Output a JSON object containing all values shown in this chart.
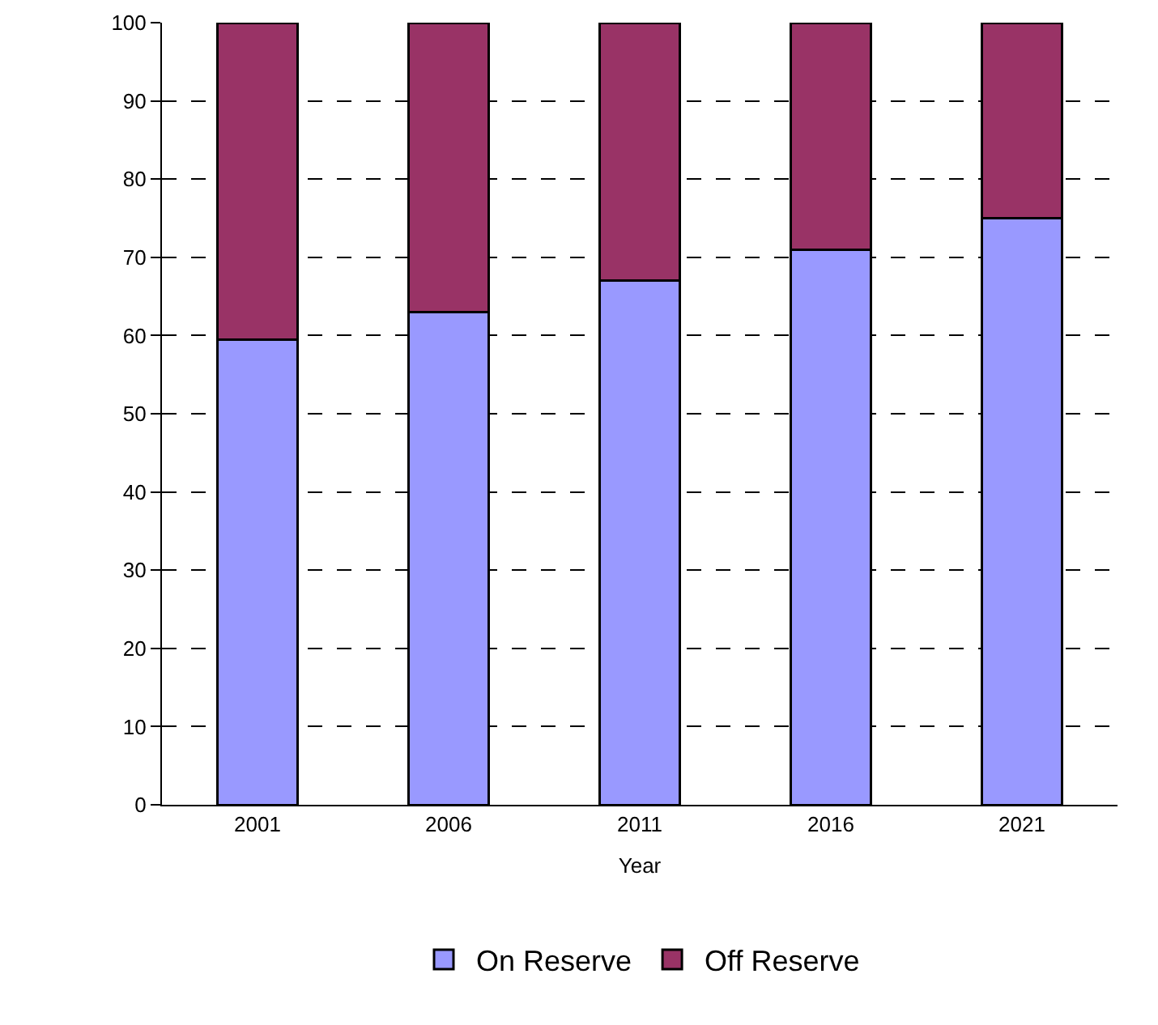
{
  "chart_data": {
    "type": "bar",
    "stacked": true,
    "xlabel": "Year",
    "categories": [
      "2001",
      "2006",
      "2011",
      "2016",
      "2021"
    ],
    "series": [
      {
        "name": "On Reserve",
        "color": "#9999ff",
        "values": [
          59.5,
          63,
          67,
          71,
          75
        ]
      },
      {
        "name": "Off Reserve",
        "color": "#993366",
        "values": [
          40.5,
          37,
          33,
          29,
          25
        ]
      }
    ],
    "ylim": [
      0,
      100
    ],
    "yticks": [
      0,
      10,
      20,
      30,
      40,
      50,
      60,
      70,
      80,
      90,
      100
    ],
    "grid": "y",
    "legend": "bottom"
  }
}
